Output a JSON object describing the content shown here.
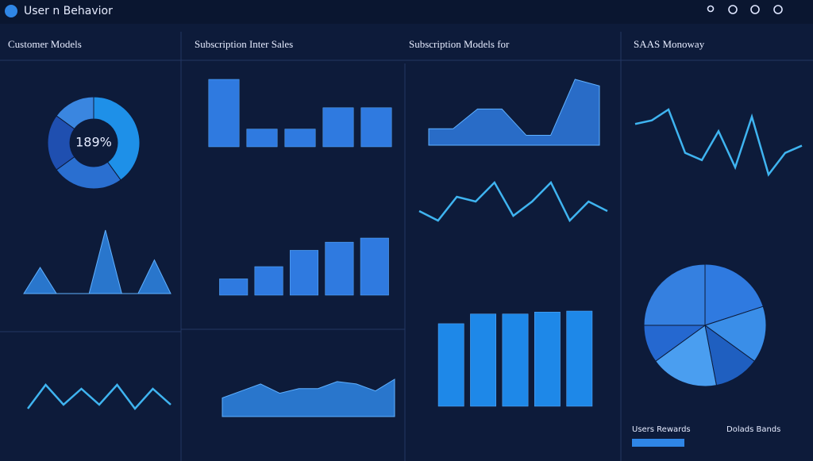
{
  "header": {
    "title": "User n Behavior"
  },
  "panels": [
    {
      "title": "Customer Models"
    },
    {
      "title": "Subscription Inter Sales"
    },
    {
      "title": "Subscription Models for"
    },
    {
      "title": "SAAS Monoway"
    }
  ],
  "donut_label": "189%",
  "footer_labels": [
    "Users Rewards",
    "Dolads Bands"
  ],
  "charts": [
    {
      "type": "donut",
      "values": [
        40,
        25,
        20,
        15
      ],
      "colors": [
        "#1e90e8",
        "#2a6fd0",
        "#1f4fb0",
        "#3a86e0"
      ]
    },
    {
      "type": "area",
      "values": [
        0,
        35,
        0,
        0,
        0,
        85,
        0,
        0,
        45,
        0
      ],
      "color": "#2f86e6"
    },
    {
      "type": "line",
      "values": [
        30,
        60,
        35,
        55,
        35,
        60,
        30,
        55,
        35
      ],
      "color": "#3fb4f0"
    },
    {
      "type": "bar",
      "values": [
        95,
        25,
        25,
        55,
        55
      ],
      "color": "#2f7ae0"
    },
    {
      "type": "bar",
      "values": [
        20,
        35,
        55,
        65,
        70
      ],
      "color": "#2f7ae0"
    },
    {
      "type": "area",
      "values": [
        40,
        55,
        70,
        50,
        60,
        60,
        75,
        70,
        55,
        80
      ],
      "color": "#2f86e6"
    },
    {
      "type": "area",
      "values": [
        25,
        25,
        55,
        55,
        15,
        15,
        100,
        90
      ],
      "color": "#2f7ae0"
    },
    {
      "type": "line",
      "values": [
        40,
        20,
        70,
        60,
        100,
        30,
        60,
        100,
        20,
        60,
        40
      ],
      "color": "#3fb4f0"
    },
    {
      "type": "bar",
      "values": [
        85,
        95,
        95,
        97,
        98
      ],
      "color": "#1e88e8"
    },
    {
      "type": "line",
      "values": [
        70,
        75,
        90,
        30,
        20,
        60,
        10,
        80,
        0,
        30,
        40
      ],
      "color": "#3fb4f0"
    },
    {
      "type": "pie",
      "values": [
        20,
        15,
        12,
        18,
        10,
        25
      ],
      "colors": [
        "#2f7ae0",
        "#3a8ee8",
        "#1f5fc0",
        "#4a9ef0",
        "#2568d0",
        "#3580e0"
      ]
    }
  ]
}
